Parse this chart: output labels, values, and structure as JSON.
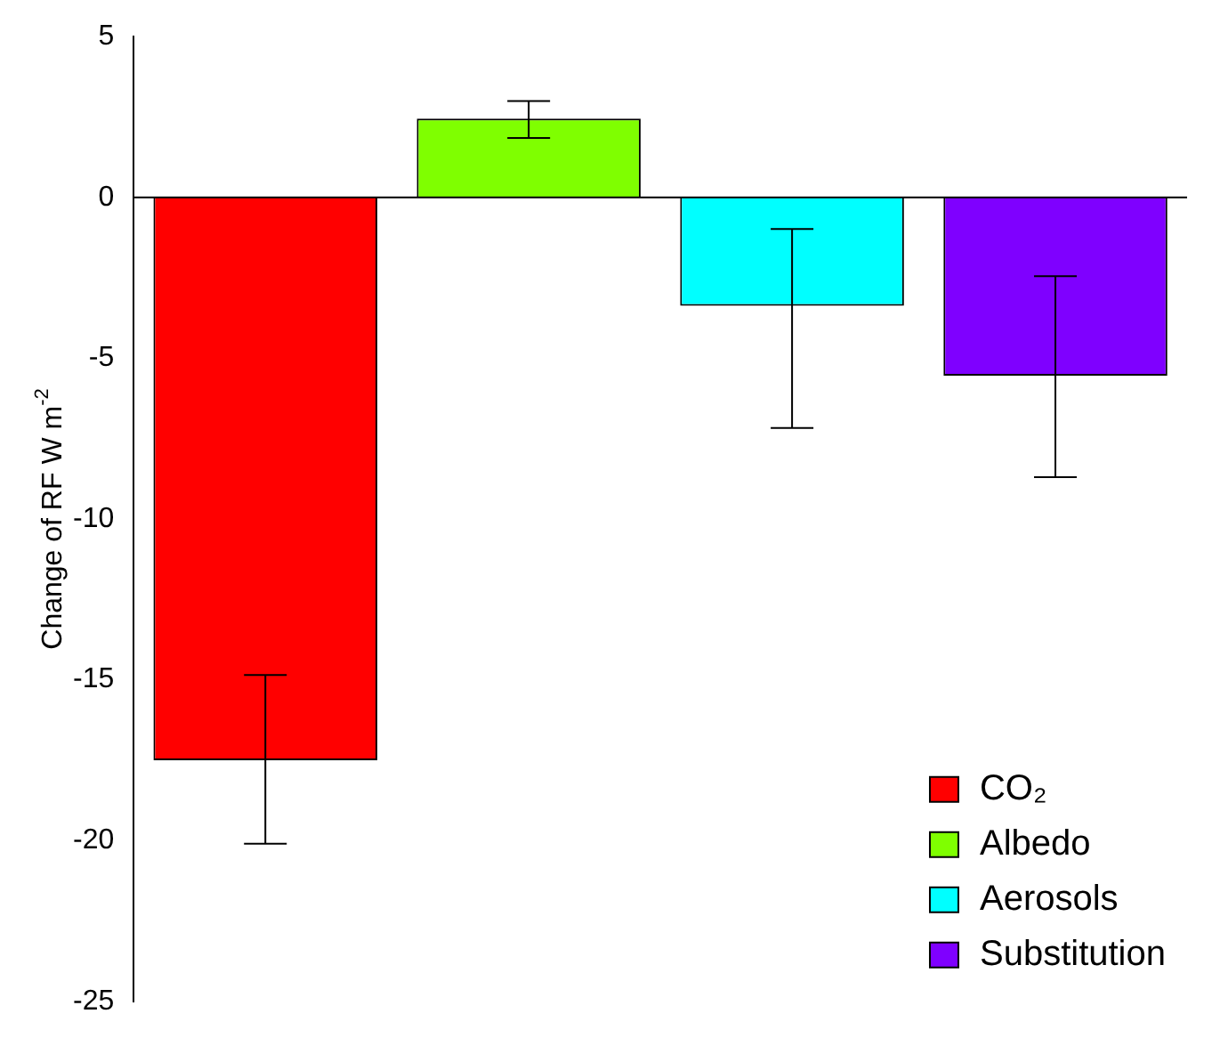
{
  "chart_data": {
    "type": "bar",
    "ylabel": "Change of RF W m$^{-2}$",
    "categories": [
      null,
      null,
      null,
      null
    ],
    "series": [
      {
        "name": "CO₂",
        "color": "#ff0000",
        "values": [
          -17.5,
          null,
          null,
          null
        ],
        "errors": [
          [
            -20.1,
            -14.85
          ],
          null,
          null,
          null
        ]
      },
      {
        "name": "Albedo",
        "color": "#7fff00",
        "values": [
          null,
          2.45,
          null,
          null
        ],
        "errors": [
          null,
          [
            1.85,
            3.0
          ],
          null,
          null
        ]
      },
      {
        "name": "Aerosols",
        "color": "#00ffff",
        "values": [
          null,
          null,
          -3.37,
          null
        ],
        "errors": [
          null,
          null,
          [
            -7.17,
            -0.98
          ],
          null
        ]
      },
      {
        "name": "Substitution",
        "color": "#7f00ff",
        "values": [
          null,
          null,
          null,
          -5.54
        ],
        "errors": [
          null,
          null,
          null,
          [
            -8.7,
            -2.45
          ]
        ]
      }
    ],
    "ylim": [
      -25,
      5
    ],
    "yticks": [
      -25,
      -20,
      -15,
      -10,
      -5,
      0,
      5
    ],
    "grid": false,
    "legend": "bottom right",
    "ref_lines": [
      {
        "axis": "y",
        "value": 0
      }
    ]
  }
}
